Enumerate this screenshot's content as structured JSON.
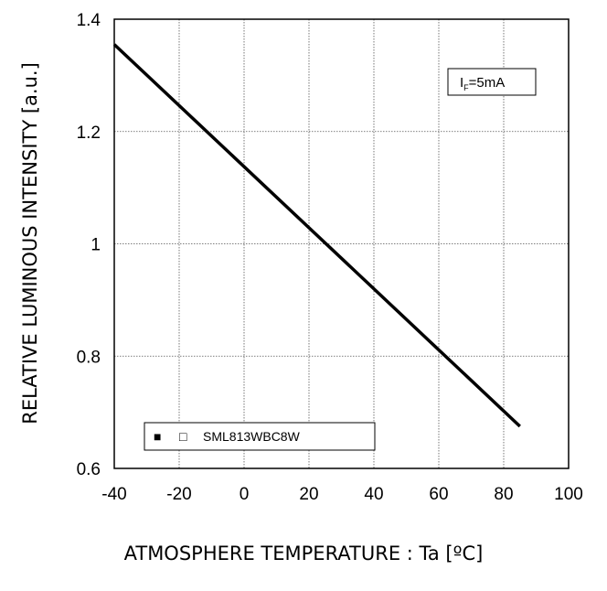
{
  "chart_data": {
    "type": "line",
    "xlabel": "ATMOSPHERE TEMPERATURE : Ta [ºC]",
    "ylabel": "RELATIVE LUMINOUS INTENSITY [a.u.]",
    "xlim": [
      -40,
      100
    ],
    "ylim": [
      0.6,
      1.4
    ],
    "x_ticks": [
      -40,
      -20,
      0,
      20,
      40,
      60,
      80,
      100
    ],
    "x_tick_labels": [
      "-40",
      "-20",
      "0",
      "20",
      "40",
      "60",
      "80",
      "100"
    ],
    "y_ticks": [
      0.6,
      0.8,
      1.0,
      1.2,
      1.4
    ],
    "y_tick_labels": [
      "0.6",
      "0.8",
      "1",
      "1.2",
      "1.4"
    ],
    "grid": true,
    "legend_position": "bottom-left",
    "legend_markers": [
      "■",
      "□"
    ],
    "series": [
      {
        "name": "SML813WBC8W",
        "color": "#000000",
        "x": [
          -40,
          85
        ],
        "y": [
          1.355,
          0.675
        ]
      }
    ],
    "annotation": {
      "main": "I",
      "sub": "F",
      "rest": "=5mA"
    }
  }
}
